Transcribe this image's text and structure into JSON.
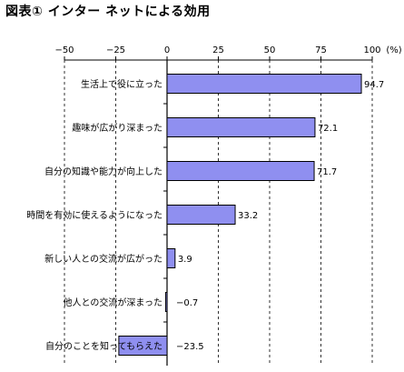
{
  "title": "図表① インター ネットによる効用",
  "chart_data": {
    "type": "bar",
    "orientation": "horizontal",
    "title": "図表① インター ネットによる効用",
    "unit": "(%)",
    "categories": [
      "生活上で役に立った",
      "趣味が広がり深まった",
      "自分の知識や能力が向上した",
      "時間を有効に使えるようになった",
      "新しい人との交流が広がった",
      "他人との交流が深まった",
      "自分のことを知ってもらえた"
    ],
    "values": [
      94.7,
      72.1,
      71.7,
      33.2,
      3.9,
      -0.7,
      -23.5
    ],
    "value_labels": [
      "94.7",
      "72.1",
      "71.7",
      "33.2",
      "3.9",
      "−0.7",
      "−23.5"
    ],
    "xlim": [
      -50,
      100
    ],
    "xticks": [
      -50,
      -25,
      0,
      25,
      50,
      75,
      100
    ],
    "xtick_labels": [
      "−50",
      "−25",
      "0",
      "25",
      "50",
      "75",
      "100"
    ],
    "grid": true,
    "legend": "none",
    "bar_color": "#8f8ff0",
    "bar_edge_color": "#000000"
  }
}
